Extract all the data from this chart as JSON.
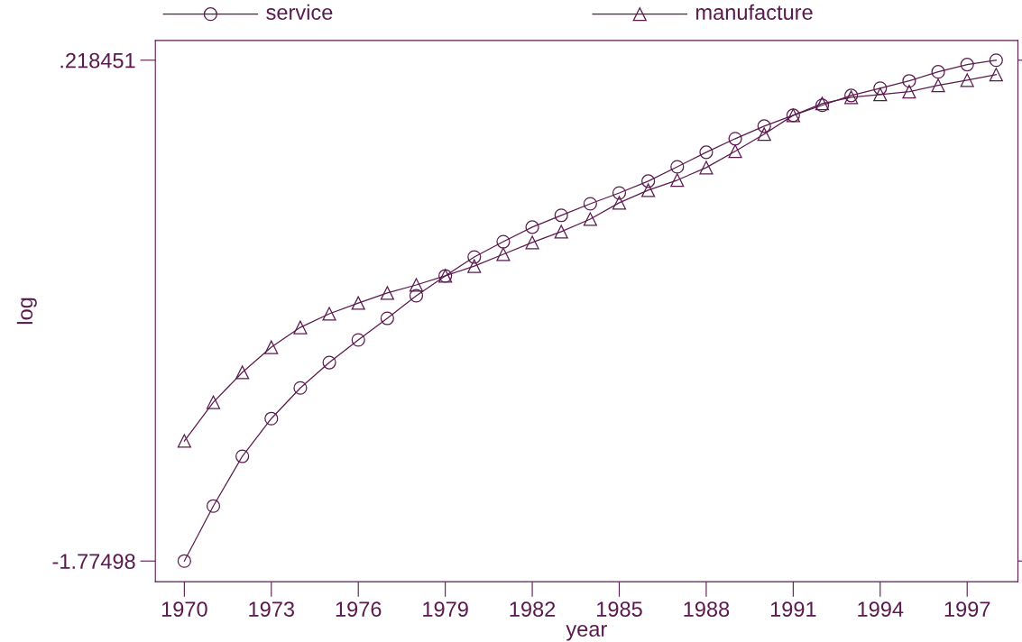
{
  "chart_data": {
    "type": "line",
    "xlabel": "year",
    "ylabel": "log",
    "x": [
      1970,
      1971,
      1972,
      1973,
      1974,
      1975,
      1976,
      1977,
      1978,
      1979,
      1980,
      1981,
      1982,
      1983,
      1984,
      1985,
      1986,
      1987,
      1988,
      1989,
      1990,
      1991,
      1992,
      1993,
      1994,
      1995,
      1996,
      1997,
      1998
    ],
    "series": [
      {
        "name": "service",
        "color": "#5a1a4e",
        "marker": "circle",
        "values": [
          -1.775,
          -1.556,
          -1.358,
          -1.208,
          -1.086,
          -0.985,
          -0.895,
          -0.809,
          -0.719,
          -0.64,
          -0.565,
          -0.504,
          -0.446,
          -0.399,
          -0.353,
          -0.31,
          -0.263,
          -0.206,
          -0.148,
          -0.094,
          -0.044,
          -0.001,
          0.039,
          0.078,
          0.107,
          0.136,
          0.172,
          0.201,
          0.2185
        ]
      },
      {
        "name": "manufacture",
        "color": "#5a1a4e",
        "marker": "triangle",
        "values": [
          -1.297,
          -1.143,
          -1.024,
          -0.924,
          -0.845,
          -0.791,
          -0.748,
          -0.708,
          -0.676,
          -0.64,
          -0.601,
          -0.554,
          -0.507,
          -0.464,
          -0.414,
          -0.349,
          -0.299,
          -0.259,
          -0.209,
          -0.144,
          -0.076,
          -0.001,
          0.046,
          0.071,
          0.082,
          0.093,
          0.118,
          0.139,
          0.161
        ]
      }
    ],
    "xlim": [
      1969,
      1998.75
    ],
    "xticks": [
      1970,
      1973,
      1976,
      1979,
      1982,
      1985,
      1988,
      1991,
      1994,
      1997
    ],
    "ylim": [
      -1.857,
      0.297
    ],
    "yticks": [
      {
        "value": -1.77498,
        "label": "-1.77498"
      },
      {
        "value": 0.218451,
        "label": ".218451"
      }
    ],
    "grid": false,
    "legend": "top",
    "line_style": "solid"
  }
}
